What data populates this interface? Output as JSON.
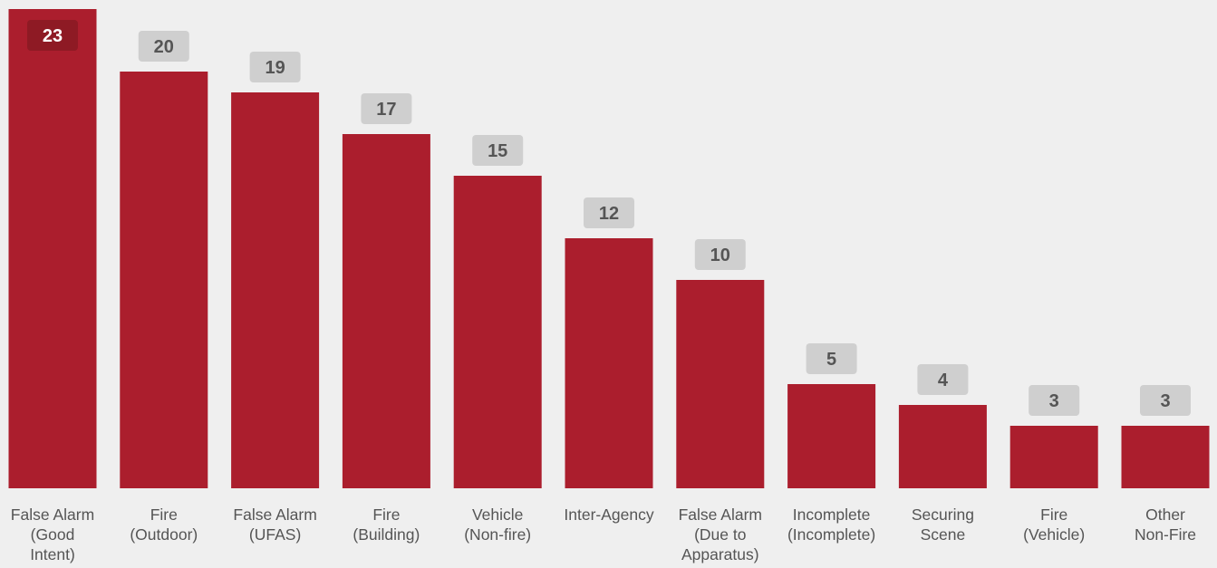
{
  "chart_data": {
    "type": "bar",
    "categories": [
      [
        "False Alarm",
        "(Good",
        "Intent)"
      ],
      [
        "Fire",
        "(Outdoor)"
      ],
      [
        "False Alarm",
        "(UFAS)"
      ],
      [
        "Fire",
        "(Building)"
      ],
      [
        "Vehicle",
        "(Non-fire)"
      ],
      [
        "Inter-Agency"
      ],
      [
        "False Alarm",
        "(Due to",
        "Apparatus)"
      ],
      [
        "Incomplete",
        "(Incomplete)"
      ],
      [
        "Securing",
        "Scene"
      ],
      [
        "Fire",
        "(Vehicle)"
      ],
      [
        "Other",
        "Non-Fire"
      ]
    ],
    "values": [
      23,
      20,
      19,
      17,
      15,
      12,
      10,
      5,
      4,
      3,
      3
    ],
    "ylim": [
      0,
      23
    ],
    "title": "",
    "xlabel": "",
    "ylabel": "",
    "grid": false,
    "colors": {
      "bar": "#ab1e2d",
      "label_bg": "#cfcfcf",
      "label_text": "#555555",
      "top_label_bg": "#8e1a24",
      "top_label_text": "#ffffff",
      "background": "#efefef"
    }
  }
}
